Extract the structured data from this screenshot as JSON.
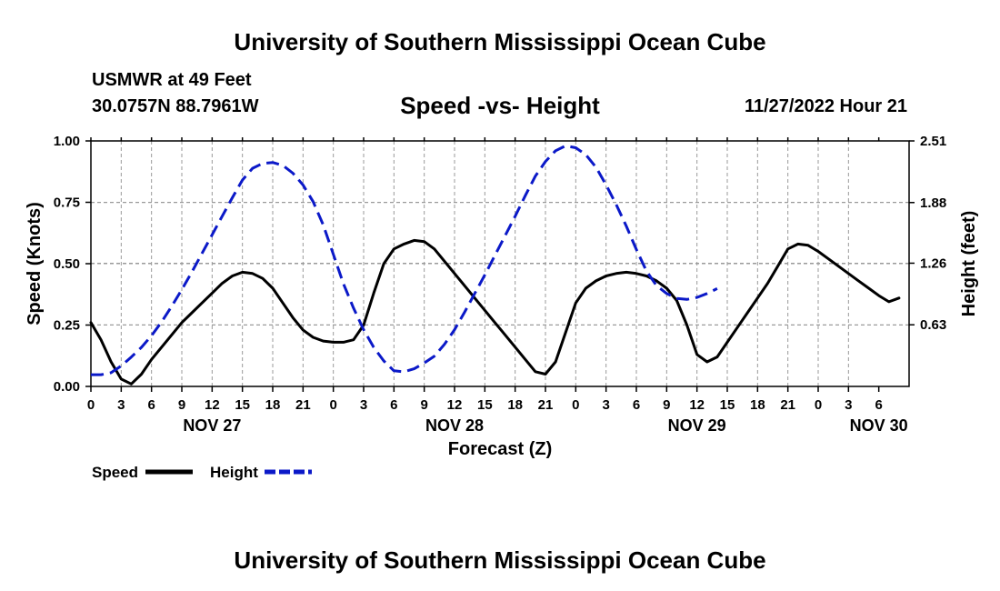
{
  "header": {
    "title": "University of Southern Mississippi Ocean Cube",
    "station": "USMWR at 49 Feet",
    "coords": "30.0757N  88.7961W",
    "subtitle": "Speed -vs- Height",
    "datetime": "11/27/2022 Hour 21"
  },
  "footer": {
    "title": "University of Southern Mississippi Ocean Cube"
  },
  "chart_data": {
    "type": "line",
    "title": "Speed -vs- Height",
    "xlabel": "Forecast (Z)",
    "ylabel": "Speed (Knots)",
    "y2label": "Height (feet)",
    "x_hours": [
      0,
      81
    ],
    "ylim": [
      0,
      1.0
    ],
    "y2lim": [
      0,
      2.51
    ],
    "yticks": [
      0.0,
      0.25,
      0.5,
      0.75,
      1.0
    ],
    "ytick_labels": [
      "0.00",
      "0.25",
      "0.50",
      "0.75",
      "1.00"
    ],
    "y2ticks": [
      0.63,
      1.26,
      1.88,
      2.51
    ],
    "y2tick_labels": [
      "0.63",
      "1.26",
      "1.88",
      "2.51"
    ],
    "xtick_labels": [
      "0",
      "3",
      "6",
      "9",
      "12",
      "15",
      "18",
      "21",
      "0",
      "3",
      "6",
      "9",
      "12",
      "15",
      "18",
      "21",
      "0",
      "3",
      "6",
      "9",
      "12",
      "15",
      "18",
      "21",
      "0",
      "3",
      "6"
    ],
    "date_labels": [
      {
        "label": "NOV 27",
        "hour": 12
      },
      {
        "label": "NOV 28",
        "hour": 36
      },
      {
        "label": "NOV 29",
        "hour": 60
      },
      {
        "label": "NOV 30",
        "hour": 78
      }
    ],
    "grid": true,
    "series": [
      {
        "name": "Speed",
        "axis": "left",
        "color": "#000000",
        "style": "solid",
        "points": [
          [
            0,
            0.26
          ],
          [
            1,
            0.19
          ],
          [
            2,
            0.1
          ],
          [
            3,
            0.03
          ],
          [
            4,
            0.01
          ],
          [
            5,
            0.05
          ],
          [
            6,
            0.11
          ],
          [
            7,
            0.16
          ],
          [
            8,
            0.21
          ],
          [
            9,
            0.26
          ],
          [
            10,
            0.3
          ],
          [
            11,
            0.34
          ],
          [
            12,
            0.38
          ],
          [
            13,
            0.42
          ],
          [
            14,
            0.45
          ],
          [
            15,
            0.465
          ],
          [
            16,
            0.46
          ],
          [
            17,
            0.44
          ],
          [
            18,
            0.4
          ],
          [
            19,
            0.34
          ],
          [
            20,
            0.28
          ],
          [
            21,
            0.23
          ],
          [
            22,
            0.2
          ],
          [
            23,
            0.185
          ],
          [
            24,
            0.18
          ],
          [
            25,
            0.18
          ],
          [
            26,
            0.19
          ],
          [
            27,
            0.25
          ],
          [
            28,
            0.38
          ],
          [
            29,
            0.5
          ],
          [
            30,
            0.56
          ],
          [
            31,
            0.58
          ],
          [
            32,
            0.595
          ],
          [
            33,
            0.59
          ],
          [
            34,
            0.56
          ],
          [
            35,
            0.51
          ],
          [
            36,
            0.46
          ],
          [
            37,
            0.41
          ],
          [
            38,
            0.36
          ],
          [
            39,
            0.31
          ],
          [
            40,
            0.26
          ],
          [
            41,
            0.21
          ],
          [
            42,
            0.16
          ],
          [
            43,
            0.11
          ],
          [
            44,
            0.06
          ],
          [
            45,
            0.05
          ],
          [
            46,
            0.1
          ],
          [
            47,
            0.22
          ],
          [
            48,
            0.34
          ],
          [
            49,
            0.4
          ],
          [
            50,
            0.43
          ],
          [
            51,
            0.45
          ],
          [
            52,
            0.46
          ],
          [
            53,
            0.465
          ],
          [
            54,
            0.46
          ],
          [
            55,
            0.45
          ],
          [
            56,
            0.43
          ],
          [
            57,
            0.4
          ],
          [
            58,
            0.35
          ],
          [
            59,
            0.25
          ],
          [
            60,
            0.13
          ],
          [
            61,
            0.1
          ],
          [
            62,
            0.12
          ],
          [
            63,
            0.18
          ],
          [
            64,
            0.24
          ],
          [
            65,
            0.3
          ],
          [
            66,
            0.36
          ],
          [
            67,
            0.42
          ],
          [
            68,
            0.49
          ],
          [
            69,
            0.56
          ],
          [
            70,
            0.58
          ],
          [
            71,
            0.575
          ],
          [
            72,
            0.55
          ],
          [
            73,
            0.52
          ],
          [
            74,
            0.49
          ],
          [
            75,
            0.46
          ],
          [
            76,
            0.43
          ],
          [
            77,
            0.4
          ],
          [
            78,
            0.37
          ],
          [
            79,
            0.345
          ],
          [
            80,
            0.36
          ]
        ]
      },
      {
        "name": "Height",
        "axis": "right",
        "color": "#0b19c8",
        "style": "dashed",
        "points": [
          [
            0,
            0.12
          ],
          [
            1,
            0.12
          ],
          [
            2,
            0.14
          ],
          [
            3,
            0.21
          ],
          [
            4,
            0.3
          ],
          [
            5,
            0.4
          ],
          [
            6,
            0.52
          ],
          [
            7,
            0.66
          ],
          [
            8,
            0.82
          ],
          [
            9,
            0.99
          ],
          [
            10,
            1.17
          ],
          [
            11,
            1.36
          ],
          [
            12,
            1.55
          ],
          [
            13,
            1.74
          ],
          [
            14,
            1.93
          ],
          [
            15,
            2.11
          ],
          [
            16,
            2.23
          ],
          [
            17,
            2.28
          ],
          [
            18,
            2.29
          ],
          [
            19,
            2.26
          ],
          [
            20,
            2.18
          ],
          [
            21,
            2.06
          ],
          [
            22,
            1.89
          ],
          [
            23,
            1.65
          ],
          [
            24,
            1.35
          ],
          [
            25,
            1.05
          ],
          [
            26,
            0.8
          ],
          [
            27,
            0.58
          ],
          [
            28,
            0.4
          ],
          [
            29,
            0.26
          ],
          [
            30,
            0.16
          ],
          [
            31,
            0.15
          ],
          [
            32,
            0.18
          ],
          [
            33,
            0.24
          ],
          [
            34,
            0.31
          ],
          [
            35,
            0.43
          ],
          [
            36,
            0.58
          ],
          [
            37,
            0.76
          ],
          [
            38,
            0.95
          ],
          [
            39,
            1.14
          ],
          [
            40,
            1.34
          ],
          [
            41,
            1.54
          ],
          [
            42,
            1.74
          ],
          [
            43,
            1.95
          ],
          [
            44,
            2.15
          ],
          [
            45,
            2.3
          ],
          [
            46,
            2.41
          ],
          [
            47,
            2.46
          ],
          [
            48,
            2.44
          ],
          [
            49,
            2.37
          ],
          [
            50,
            2.24
          ],
          [
            51,
            2.06
          ],
          [
            52,
            1.86
          ],
          [
            53,
            1.64
          ],
          [
            54,
            1.4
          ],
          [
            55,
            1.18
          ],
          [
            56,
            1.03
          ],
          [
            57,
            0.95
          ],
          [
            58,
            0.9
          ],
          [
            59,
            0.89
          ],
          [
            60,
            0.91
          ],
          [
            61,
            0.95
          ],
          [
            62,
            1.0
          ]
        ]
      }
    ],
    "legend": [
      {
        "label": "Speed",
        "color": "#000000",
        "style": "solid"
      },
      {
        "label": "Height",
        "color": "#0b19c8",
        "style": "dashed"
      }
    ],
    "legend_position": "bottom-left"
  }
}
